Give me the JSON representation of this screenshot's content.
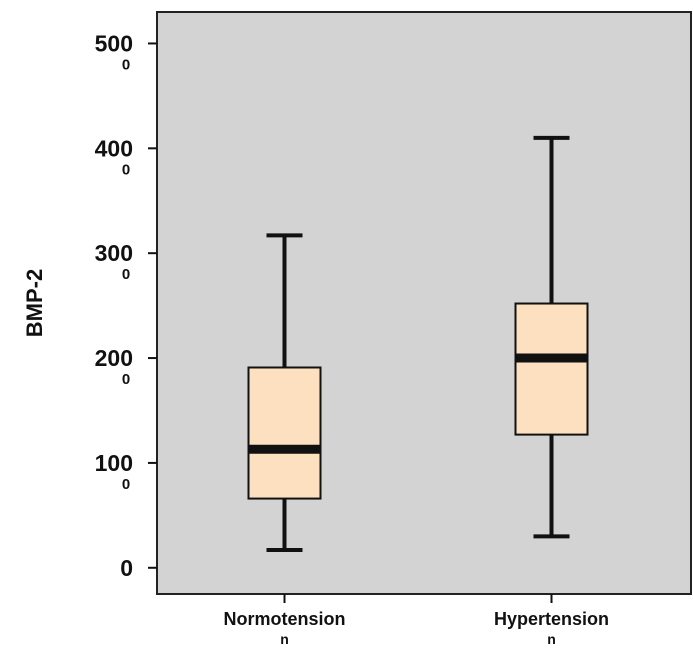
{
  "chart_data": {
    "type": "box",
    "ylabel": "BMP-2",
    "xlabel": "",
    "ylim": [
      -250,
      5300
    ],
    "grid": false,
    "colors": {
      "plot_background": "#d3d3d3",
      "box_fill": "#fde0c0",
      "stroke": "#111111"
    },
    "y_ticks": [
      {
        "value": 0,
        "label": "0",
        "sub": ""
      },
      {
        "value": 1000,
        "label": "100",
        "sub": "0"
      },
      {
        "value": 2000,
        "label": "200",
        "sub": "0"
      },
      {
        "value": 3000,
        "label": "300",
        "sub": "0"
      },
      {
        "value": 4000,
        "label": "400",
        "sub": "0"
      },
      {
        "value": 5000,
        "label": "500",
        "sub": "0"
      }
    ],
    "categories": [
      {
        "label": "Normotension",
        "sub": "n"
      },
      {
        "label": "Hypertension",
        "sub": "n"
      }
    ],
    "boxes": [
      {
        "whisker_low": 170,
        "q1": 660,
        "median": 1130,
        "q3": 1910,
        "whisker_high": 3170
      },
      {
        "whisker_low": 300,
        "q1": 1270,
        "median": 2000,
        "q3": 2520,
        "whisker_high": 4100
      }
    ]
  }
}
